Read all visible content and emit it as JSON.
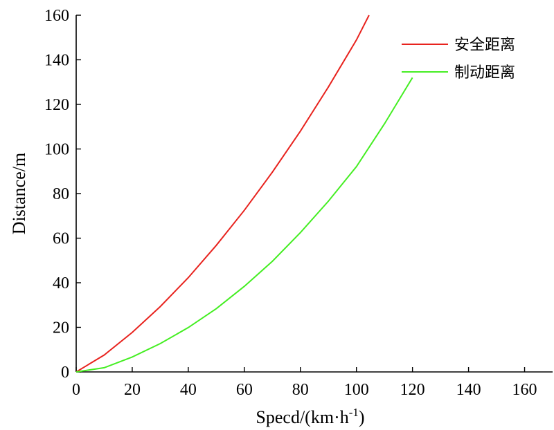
{
  "chart_data": {
    "type": "line",
    "title": "",
    "xlabel": "Specd/(km·h",
    "xlabel_sup": "-1",
    "xlabel_close": ")",
    "ylabel": "Distance/m",
    "xlim": [
      0,
      170
    ],
    "ylim": [
      0,
      160
    ],
    "xticks": [
      0,
      20,
      40,
      60,
      80,
      100,
      120,
      140,
      160
    ],
    "yticks": [
      0,
      20,
      40,
      60,
      80,
      100,
      120,
      140,
      160
    ],
    "grid": false,
    "legend_position": "top-right",
    "series": [
      {
        "name": "安全距离",
        "color": "#e8231e",
        "x": [
          0,
          10,
          20,
          30,
          40,
          50,
          60,
          70,
          80,
          90,
          100,
          104.5
        ],
        "y": [
          0,
          7.6,
          17.7,
          29.3,
          42.3,
          56.8,
          72.5,
          89.6,
          108,
          127.8,
          148.9,
          160
        ]
      },
      {
        "name": "制动距离",
        "color": "#44ee22",
        "x": [
          0,
          10,
          20,
          30,
          40,
          50,
          60,
          70,
          80,
          90,
          100,
          110,
          120
        ],
        "y": [
          0,
          1.9,
          6.7,
          12.7,
          19.9,
          28.4,
          38.4,
          49.6,
          62.5,
          76.6,
          92.1,
          111.3,
          132
        ]
      }
    ]
  }
}
